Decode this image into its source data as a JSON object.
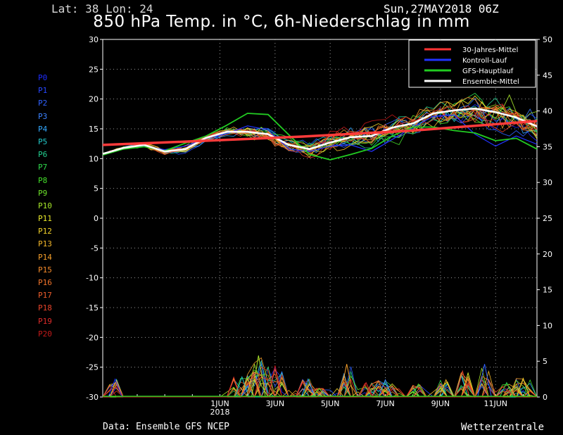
{
  "header": {
    "latlon": "Lat: 38 Lon: 24",
    "date": "Sun,27MAY2018 06Z",
    "title": "850 hPa Temp. in °C, 6h-Niederschlag in mm"
  },
  "footer": {
    "source": "Data: Ensemble GFS NCEP",
    "brand": "Wetterzentrale"
  },
  "members": [
    {
      "name": "P0",
      "color": "#1e2cff"
    },
    {
      "name": "P1",
      "color": "#2747ff"
    },
    {
      "name": "P2",
      "color": "#3062ff"
    },
    {
      "name": "P3",
      "color": "#3b82ff"
    },
    {
      "name": "P4",
      "color": "#33a8ff"
    },
    {
      "name": "P5",
      "color": "#22c8c8"
    },
    {
      "name": "P6",
      "color": "#22d090"
    },
    {
      "name": "P7",
      "color": "#2ed84c"
    },
    {
      "name": "P8",
      "color": "#44e02a"
    },
    {
      "name": "P9",
      "color": "#6ee22a"
    },
    {
      "name": "P10",
      "color": "#a8e82a"
    },
    {
      "name": "P11",
      "color": "#e8e82a"
    },
    {
      "name": "P12",
      "color": "#f2d22a"
    },
    {
      "name": "P13",
      "color": "#f4b82a"
    },
    {
      "name": "P14",
      "color": "#f49e2a"
    },
    {
      "name": "P15",
      "color": "#f48a2a"
    },
    {
      "name": "P16",
      "color": "#f2742a"
    },
    {
      "name": "P17",
      "color": "#ee5c2a"
    },
    {
      "name": "P18",
      "color": "#e8442a"
    },
    {
      "name": "P19",
      "color": "#e02c2a"
    },
    {
      "name": "P20",
      "color": "#c41a1a"
    }
  ],
  "chart_data": {
    "type": "line",
    "title": "850 hPa Temp. in °C, 6h-Niederschlag in mm",
    "x_ticks": [
      {
        "label": "1JUN",
        "sub": "2018",
        "day": 5
      },
      {
        "label": "3JUN",
        "day": 7
      },
      {
        "label": "5JUN",
        "day": 9
      },
      {
        "label": "7JUN",
        "day": 11
      },
      {
        "label": "9JUN",
        "day": 13
      },
      {
        "label": "11JUN",
        "day": 15
      }
    ],
    "x_range_days": [
      0.75,
      16.5
    ],
    "y_left": {
      "min": -30,
      "max": 30,
      "step": 5,
      "unit": "°C"
    },
    "y_right": {
      "min": 0,
      "max": 50,
      "step": 5,
      "unit": "mm"
    },
    "grid": true,
    "legend_position": "top-right",
    "legend": [
      {
        "label": "30-Jahres-Mittel",
        "color": "#ff3333"
      },
      {
        "label": "Kontroll-Lauf",
        "color": "#2233ff"
      },
      {
        "label": "GFS-Hauptlauf",
        "color": "#22cc22"
      },
      {
        "label": "Ensemble-Mittel",
        "color": "#ffffff"
      }
    ],
    "series": [
      {
        "name": "30-Jahres-Mittel",
        "values": [
          [
            0.75,
            12.3
          ],
          [
            4,
            12.9
          ],
          [
            8,
            13.7
          ],
          [
            12,
            14.7
          ],
          [
            16.5,
            16.3
          ]
        ]
      },
      {
        "name": "Ensemble-Mittel",
        "values": [
          [
            0.75,
            10.8
          ],
          [
            1.5,
            11.8
          ],
          [
            2.25,
            12.3
          ],
          [
            3,
            11.2
          ],
          [
            3.75,
            11.6
          ],
          [
            4.5,
            13.5
          ],
          [
            5.25,
            14.5
          ],
          [
            6,
            14.5
          ],
          [
            6.75,
            14.1
          ],
          [
            7.5,
            12.3
          ],
          [
            8.25,
            11.6
          ],
          [
            9,
            12.7
          ],
          [
            9.75,
            13.6
          ],
          [
            10.5,
            13.8
          ],
          [
            11.25,
            15.2
          ],
          [
            12,
            15.9
          ],
          [
            12.75,
            17.6
          ],
          [
            13.5,
            18.1
          ],
          [
            14.25,
            18.4
          ],
          [
            15,
            17.8
          ],
          [
            15.75,
            16.9
          ],
          [
            16.5,
            15.4
          ]
        ]
      },
      {
        "name": "Kontroll-Lauf",
        "values": [
          [
            0.75,
            10.7
          ],
          [
            1.5,
            11.6
          ],
          [
            2.25,
            12.1
          ],
          [
            3,
            11.5
          ],
          [
            3.75,
            12.1
          ],
          [
            4.5,
            13.4
          ],
          [
            5.25,
            14.2
          ],
          [
            6,
            15.5
          ],
          [
            6.75,
            14.8
          ],
          [
            7.5,
            11.6
          ],
          [
            8.25,
            11.2
          ],
          [
            9,
            12.1
          ],
          [
            9.75,
            12.3
          ],
          [
            10.5,
            11.2
          ],
          [
            11.25,
            13.2
          ],
          [
            12,
            15.3
          ],
          [
            12.75,
            17.1
          ],
          [
            13.5,
            17.3
          ],
          [
            14.25,
            14.1
          ],
          [
            15,
            12.1
          ],
          [
            15.75,
            13.8
          ],
          [
            16.5,
            12.4
          ]
        ]
      },
      {
        "name": "GFS-Hauptlauf",
        "values": [
          [
            0.75,
            10.6
          ],
          [
            1.5,
            11.6
          ],
          [
            2.25,
            12.0
          ],
          [
            3,
            11.3
          ],
          [
            3.75,
            12.6
          ],
          [
            4.5,
            13.8
          ],
          [
            5.25,
            15.6
          ],
          [
            6,
            17.6
          ],
          [
            6.75,
            17.4
          ],
          [
            7.5,
            14.0
          ],
          [
            8.25,
            10.7
          ],
          [
            9,
            9.8
          ],
          [
            9.75,
            10.7
          ],
          [
            10.5,
            11.7
          ],
          [
            11.25,
            13.8
          ],
          [
            12,
            15.3
          ],
          [
            12.75,
            15.3
          ],
          [
            13.5,
            14.7
          ],
          [
            14.25,
            14.3
          ],
          [
            15,
            13.0
          ],
          [
            15.75,
            13.4
          ],
          [
            16.5,
            11.6
          ]
        ]
      }
    ],
    "precip_peaks_mm": [
      {
        "day": 1.2,
        "mm": 2.5
      },
      {
        "day": 5.8,
        "mm": 2.8
      },
      {
        "day": 6.4,
        "mm": 5.8
      },
      {
        "day": 6.2,
        "mm": 3.5
      },
      {
        "day": 7.0,
        "mm": 4.4
      },
      {
        "day": 8.2,
        "mm": 2.5
      },
      {
        "day": 8.6,
        "mm": 1.2
      },
      {
        "day": 9.6,
        "mm": 4.6
      },
      {
        "day": 10.3,
        "mm": 2.0
      },
      {
        "day": 11.0,
        "mm": 2.4
      },
      {
        "day": 12.2,
        "mm": 1.8
      },
      {
        "day": 13.2,
        "mm": 2.4
      },
      {
        "day": 13.8,
        "mm": 3.6
      },
      {
        "day": 14.6,
        "mm": 4.6
      },
      {
        "day": 15.4,
        "mm": 2.0
      },
      {
        "day": 16.0,
        "mm": 2.6
      }
    ]
  }
}
